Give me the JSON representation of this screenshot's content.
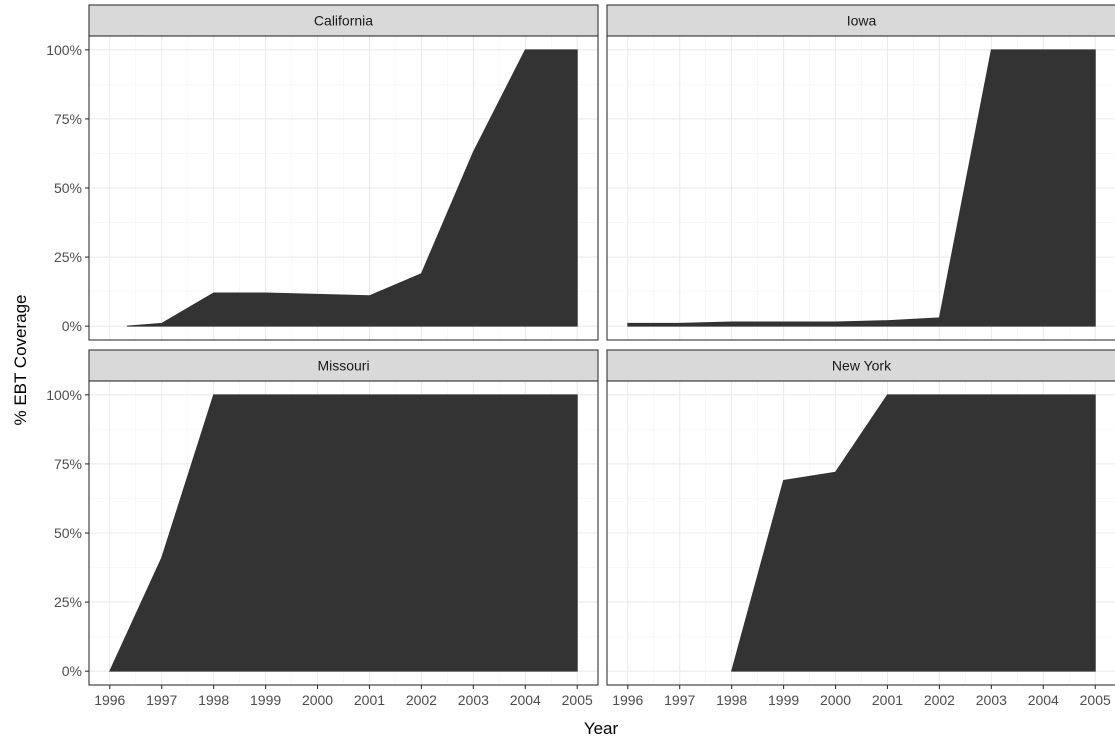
{
  "chart_data": {
    "type": "area",
    "xlabel": "Year",
    "ylabel": "% EBT Coverage",
    "x_ticks": [
      "1996",
      "1997",
      "1998",
      "1999",
      "2000",
      "2001",
      "2002",
      "2003",
      "2004",
      "2005"
    ],
    "y_ticks": [
      "0%",
      "25%",
      "50%",
      "75%",
      "100%"
    ],
    "xlim": [
      1995.6,
      2005.4
    ],
    "ylim": [
      -0.05,
      1.05
    ],
    "grid": true,
    "fill_color": "#333333",
    "panels": [
      {
        "title": "California",
        "points": [
          {
            "x": 1996.33,
            "y": 0.0
          },
          {
            "x": 1996.67,
            "y": 0.005
          },
          {
            "x": 1997,
            "y": 0.01
          },
          {
            "x": 1998,
            "y": 0.12
          },
          {
            "x": 1999,
            "y": 0.12
          },
          {
            "x": 2000,
            "y": 0.115
          },
          {
            "x": 2001,
            "y": 0.11
          },
          {
            "x": 2002,
            "y": 0.19
          },
          {
            "x": 2003,
            "y": 0.63
          },
          {
            "x": 2004,
            "y": 1.0
          },
          {
            "x": 2005,
            "y": 1.0
          }
        ]
      },
      {
        "title": "Iowa",
        "points": [
          {
            "x": 1996,
            "y": 0.01
          },
          {
            "x": 1997,
            "y": 0.01
          },
          {
            "x": 1998,
            "y": 0.015
          },
          {
            "x": 1999,
            "y": 0.015
          },
          {
            "x": 2000,
            "y": 0.015
          },
          {
            "x": 2001,
            "y": 0.02
          },
          {
            "x": 2002,
            "y": 0.03
          },
          {
            "x": 2003,
            "y": 1.0
          },
          {
            "x": 2004,
            "y": 1.0
          },
          {
            "x": 2005,
            "y": 1.0
          }
        ]
      },
      {
        "title": "Missouri",
        "points": [
          {
            "x": 1996,
            "y": 0.0
          },
          {
            "x": 1997,
            "y": 0.41
          },
          {
            "x": 1998,
            "y": 1.0
          },
          {
            "x": 1999,
            "y": 1.0
          },
          {
            "x": 2000,
            "y": 1.0
          },
          {
            "x": 2001,
            "y": 1.0
          },
          {
            "x": 2002,
            "y": 1.0
          },
          {
            "x": 2003,
            "y": 1.0
          },
          {
            "x": 2004,
            "y": 1.0
          },
          {
            "x": 2005,
            "y": 1.0
          }
        ]
      },
      {
        "title": "New York",
        "points": [
          {
            "x": 1998,
            "y": 0.0
          },
          {
            "x": 1999,
            "y": 0.69
          },
          {
            "x": 2000,
            "y": 0.72
          },
          {
            "x": 2001,
            "y": 1.0
          },
          {
            "x": 2002,
            "y": 1.0
          },
          {
            "x": 2003,
            "y": 1.0
          },
          {
            "x": 2004,
            "y": 1.0
          },
          {
            "x": 2005,
            "y": 1.0
          }
        ]
      }
    ]
  }
}
